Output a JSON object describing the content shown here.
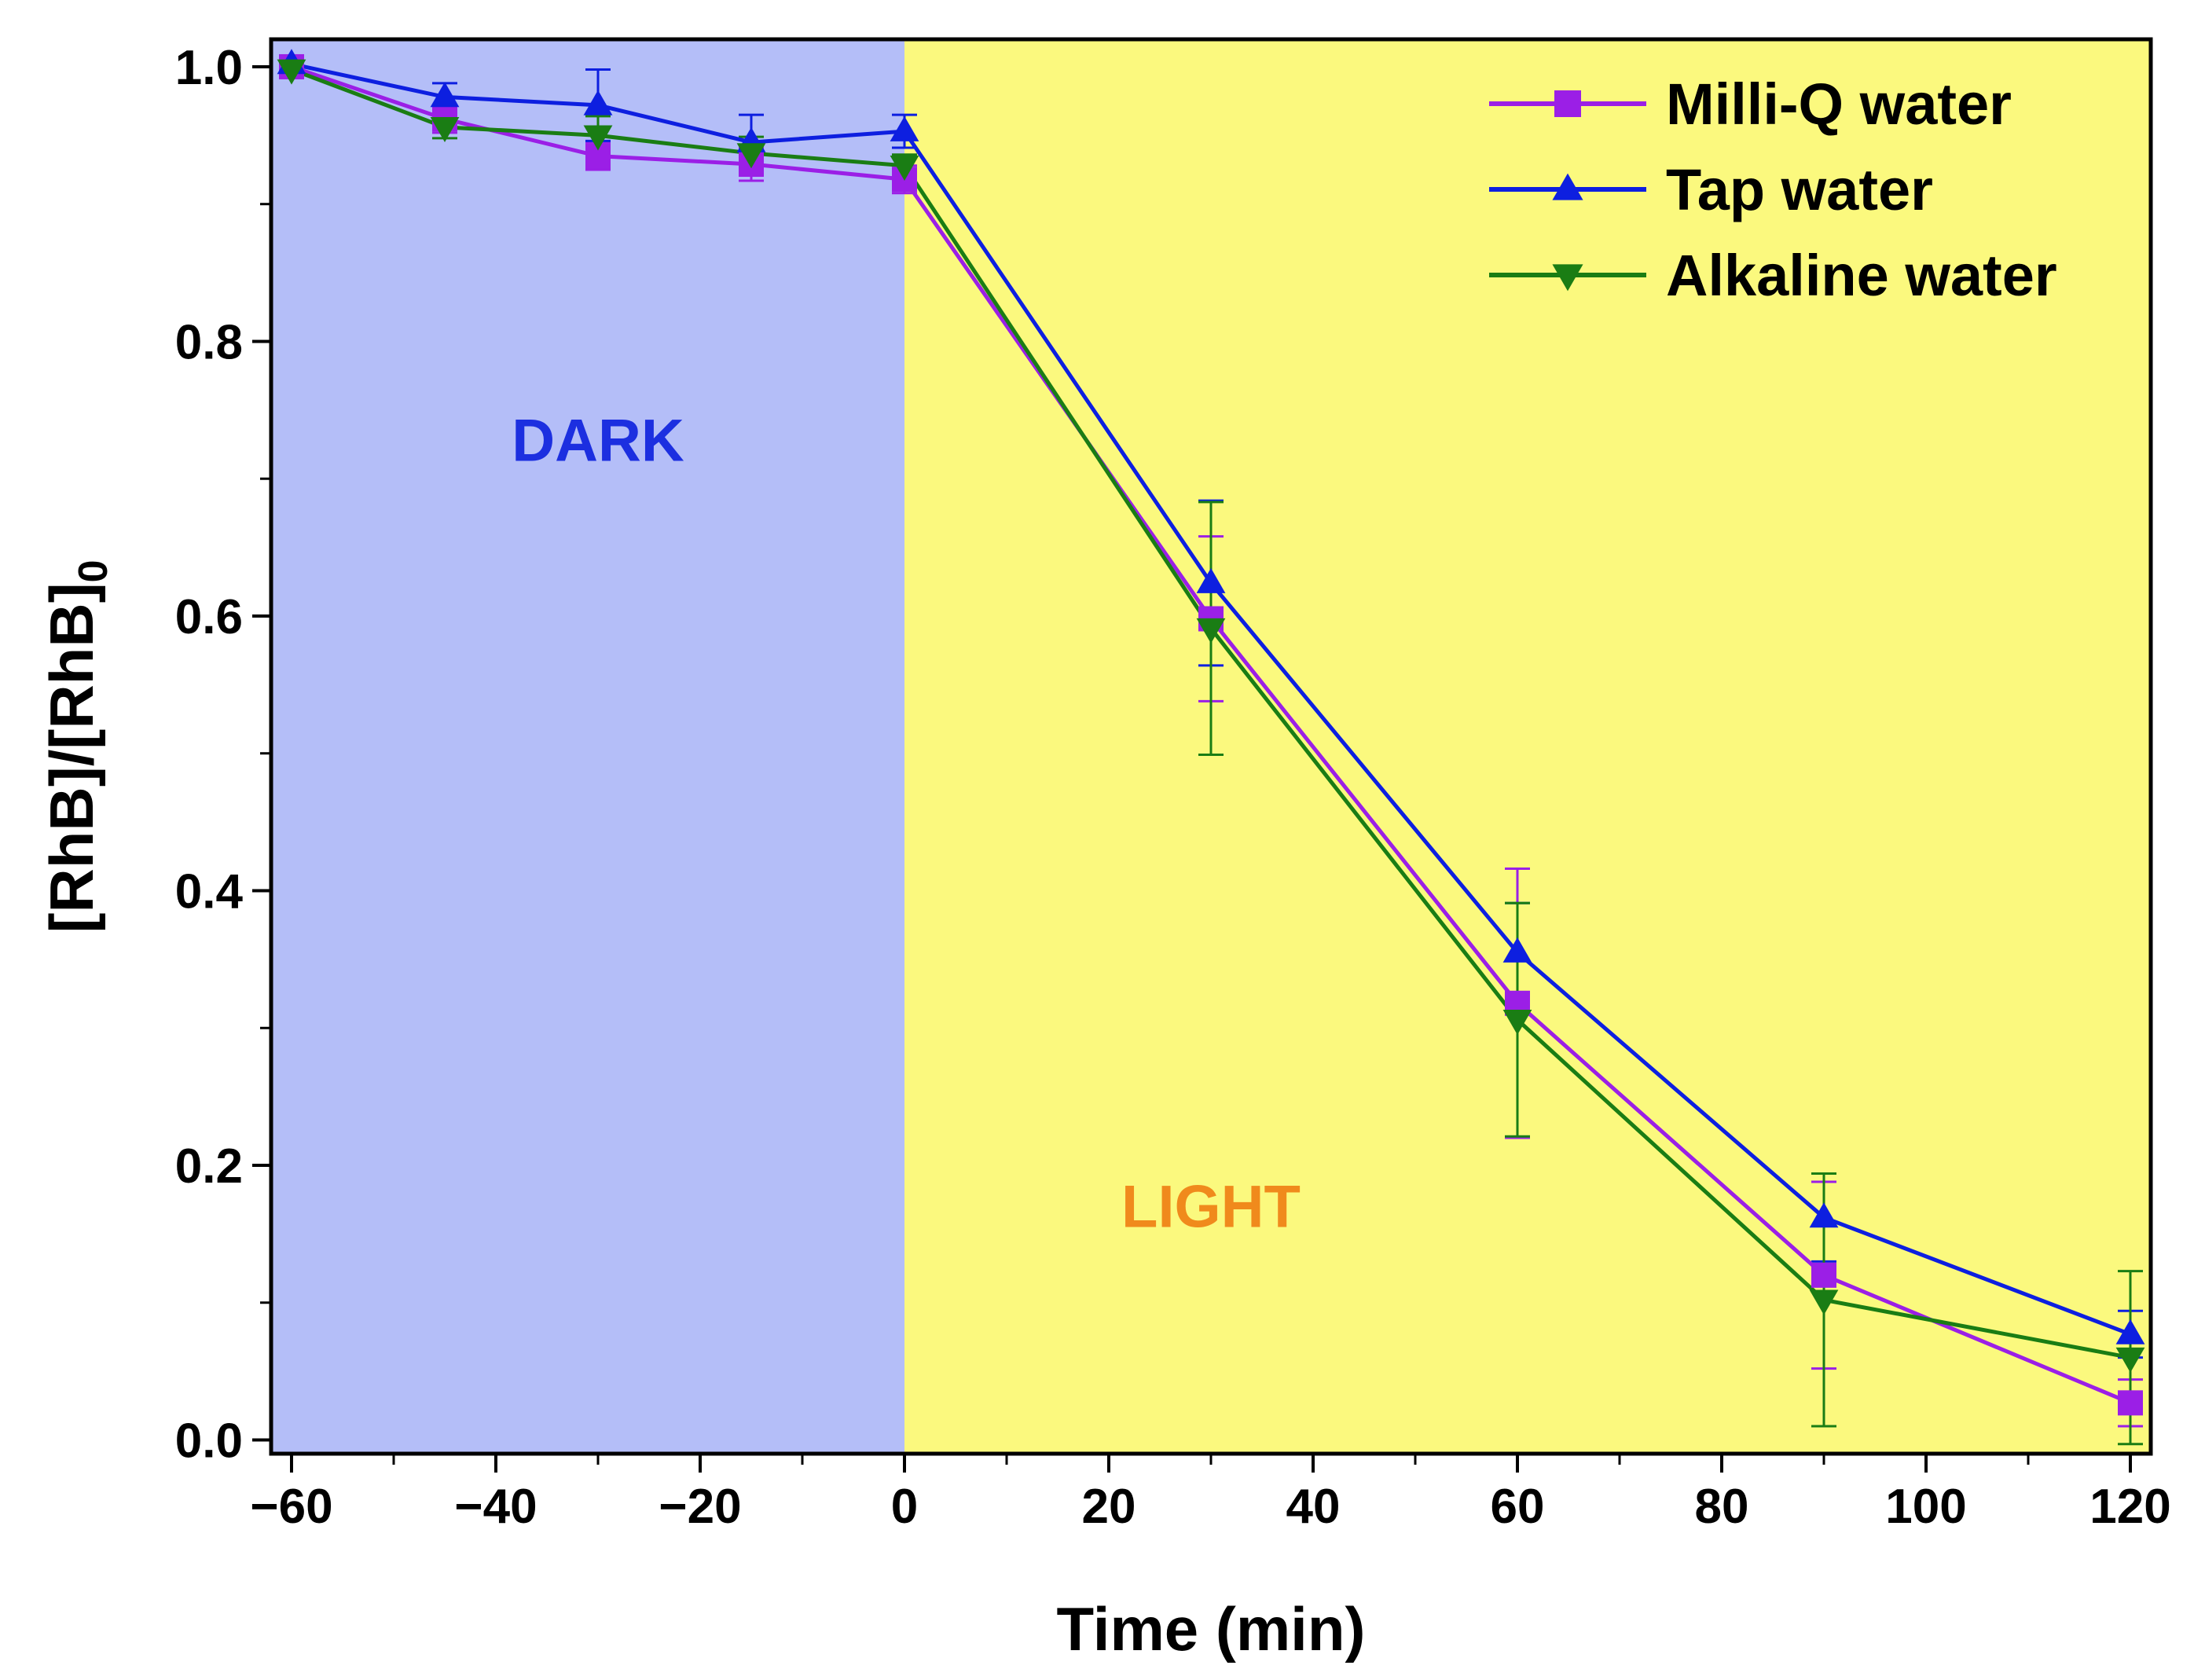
{
  "chart_data": {
    "type": "line",
    "title": "",
    "xlabel": "Time (min)",
    "ylabel": "[RhB]/[RhB]",
    "ylabel_subscript": "0",
    "xlim": [
      -62,
      122
    ],
    "ylim": [
      -0.01,
      1.02
    ],
    "x_ticks": [
      -60,
      -40,
      -20,
      0,
      20,
      40,
      60,
      80,
      100,
      120
    ],
    "x_tick_labels": [
      "−60",
      "−40",
      "−20",
      "0",
      "20",
      "40",
      "60",
      "80",
      "100",
      "120"
    ],
    "y_ticks": [
      0.0,
      0.2,
      0.4,
      0.6,
      0.8,
      1.0
    ],
    "y_tick_labels": [
      "0.0",
      "0.2",
      "0.4",
      "0.6",
      "0.8",
      "1.0"
    ],
    "regions": [
      {
        "label": "DARK",
        "x_from": -62,
        "x_to": 0,
        "fill": "#b4bef8",
        "text_color": "#1c2fe0",
        "label_x": -30,
        "label_y": 0.713
      },
      {
        "label": "LIGHT",
        "x_from": 0,
        "x_to": 122,
        "fill": "#fbf97e",
        "text_color": "#f08a1c",
        "label_x": 30,
        "label_y": 0.155
      }
    ],
    "x": [
      -60,
      -45,
      -30,
      -15,
      0,
      30,
      60,
      90,
      120
    ],
    "series": [
      {
        "name": "Milli-Q water",
        "color": "#9b1fe6",
        "marker": "square",
        "values": [
          1.0,
          0.962,
          0.935,
          0.929,
          0.918,
          0.598,
          0.318,
          0.12,
          0.027
        ],
        "errors": [
          0.004,
          0.01,
          0.01,
          0.012,
          0.01,
          0.06,
          0.098,
          0.068,
          0.017
        ]
      },
      {
        "name": "Tap water",
        "color": "#0d1fe0",
        "marker": "triangle-up",
        "values": [
          1.002,
          0.978,
          0.972,
          0.945,
          0.953,
          0.624,
          0.355,
          0.162,
          0.077
        ],
        "errors": [
          0.004,
          0.01,
          0.026,
          0.02,
          0.012,
          0.06,
          0.036,
          0.032,
          0.017
        ]
      },
      {
        "name": "Alkaline water",
        "color": "#1a7d14",
        "marker": "triangle-down",
        "values": [
          0.998,
          0.956,
          0.95,
          0.937,
          0.928,
          0.591,
          0.306,
          0.102,
          0.06
        ],
        "errors": [
          0.004,
          0.008,
          0.014,
          0.012,
          0.008,
          0.092,
          0.085,
          0.092,
          0.063
        ]
      }
    ],
    "legend_position": "top-right"
  }
}
